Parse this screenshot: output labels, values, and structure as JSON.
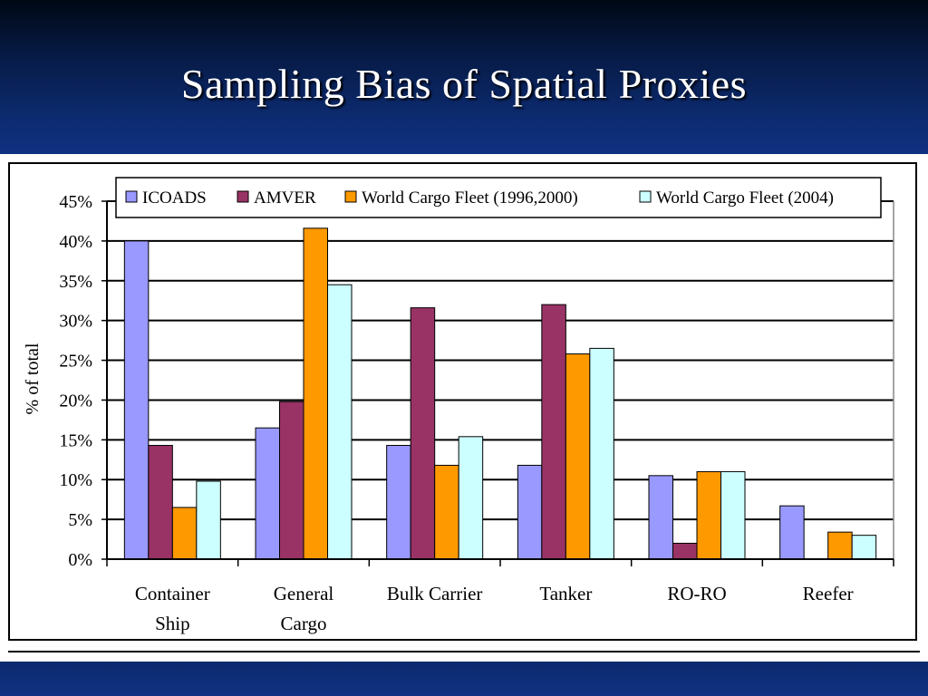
{
  "slide": {
    "title": "Sampling Bias of Spatial Proxies"
  },
  "colors": {
    "header_top": "#000814",
    "header_bottom": "#113182",
    "title_text": "#ffffff"
  },
  "chart_data": {
    "type": "bar",
    "ylabel": "% of total",
    "xlabel": "",
    "ylim": [
      0,
      45
    ],
    "y_ticks": [
      "0%",
      "5%",
      "10%",
      "15%",
      "20%",
      "25%",
      "30%",
      "35%",
      "40%",
      "45%"
    ],
    "y_tick_values": [
      0,
      5,
      10,
      15,
      20,
      25,
      30,
      35,
      40,
      45
    ],
    "grid": true,
    "legend_position": "top",
    "categories": [
      [
        "Container",
        "Ship"
      ],
      [
        "General",
        "Cargo"
      ],
      [
        "Bulk Carrier"
      ],
      [
        "Tanker"
      ],
      [
        "RO-RO"
      ],
      [
        "Reefer"
      ]
    ],
    "series": [
      {
        "name": "ICOADS",
        "color": "#9999ff",
        "values": [
          40.0,
          16.5,
          14.3,
          11.8,
          10.5,
          6.7
        ]
      },
      {
        "name": "AMVER",
        "color": "#993366",
        "values": [
          14.3,
          19.8,
          31.6,
          32.0,
          2.0,
          0.0
        ]
      },
      {
        "name": "World Cargo Fleet (1996,2000)",
        "color": "#ff9900",
        "values": [
          6.5,
          41.6,
          11.8,
          25.8,
          11.0,
          3.4
        ]
      },
      {
        "name": "World Cargo Fleet (2004)",
        "color": "#ccffff",
        "values": [
          9.8,
          34.5,
          15.4,
          26.5,
          11.0,
          3.0
        ]
      }
    ]
  }
}
